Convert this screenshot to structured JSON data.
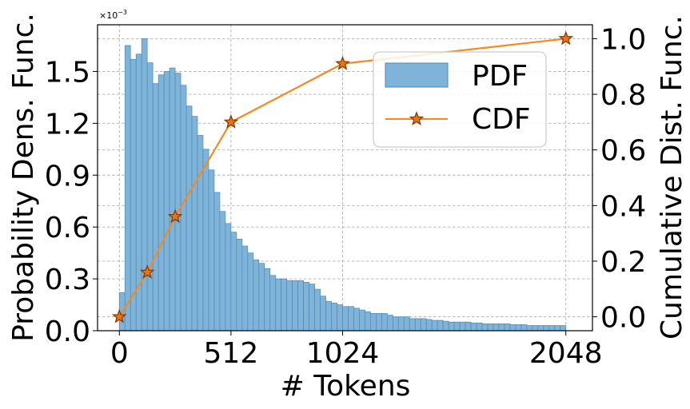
{
  "chart_data": {
    "type": "bar",
    "xlabel": "# Tokens",
    "ylabel_left": "Probability Dens. Func.",
    "ylabel_right": "Cumulative Dist. Func.",
    "left_axis_multiplier": "×10",
    "left_axis_multiplier_exp": "−3",
    "xlim": [
      -100,
      2170
    ],
    "ylim_left": [
      0,
      1.77
    ],
    "ylim_right": [
      -0.05,
      1.05
    ],
    "x_ticks": [
      0,
      512,
      1024,
      2048
    ],
    "x_tick_labels": [
      "0",
      "512",
      "1024",
      "2048"
    ],
    "y_left_ticks": [
      0,
      0.3,
      0.6,
      0.9,
      1.2,
      1.5
    ],
    "y_left_tick_labels": [
      "0.0",
      "0.3",
      "0.6",
      "0.9",
      "1.2",
      "1.5"
    ],
    "y_right_ticks": [
      0,
      0.2,
      0.4,
      0.6,
      0.8,
      1.0
    ],
    "y_right_tick_labels": [
      "0.0",
      "0.2",
      "0.4",
      "0.6",
      "0.8",
      "1.0"
    ],
    "grid": true,
    "legend_position": "upper-right",
    "series": [
      {
        "name": "PDF",
        "type": "histogram",
        "color": "#7fb3d8",
        "edge_color": "#4a8ab8",
        "bin_start": 0,
        "bin_width": 25.6,
        "values": [
          0.22,
          1.65,
          1.57,
          1.6,
          1.69,
          1.55,
          1.43,
          1.48,
          1.5,
          1.52,
          1.49,
          1.42,
          1.3,
          1.24,
          1.13,
          1.05,
          0.93,
          0.8,
          0.69,
          0.62,
          0.57,
          0.53,
          0.49,
          0.45,
          0.41,
          0.39,
          0.36,
          0.32,
          0.3,
          0.3,
          0.29,
          0.29,
          0.29,
          0.28,
          0.27,
          0.24,
          0.2,
          0.17,
          0.16,
          0.15,
          0.14,
          0.14,
          0.13,
          0.12,
          0.11,
          0.1,
          0.1,
          0.1,
          0.09,
          0.08,
          0.08,
          0.08,
          0.07,
          0.07,
          0.07,
          0.065,
          0.06,
          0.06,
          0.055,
          0.05,
          0.05,
          0.05,
          0.05,
          0.045,
          0.045,
          0.04,
          0.04,
          0.04,
          0.04,
          0.04,
          0.035,
          0.035,
          0.035,
          0.03,
          0.03,
          0.03,
          0.03,
          0.03,
          0.03,
          0.03
        ]
      },
      {
        "name": "CDF",
        "type": "line",
        "color": "#f58a1f",
        "marker": "star",
        "marker_face": "#e8760b",
        "marker_edge": "#8a3a00",
        "x": [
          0,
          128,
          256,
          512,
          1024,
          2048
        ],
        "y": [
          0.0,
          0.16,
          0.36,
          0.7,
          0.91,
          1.0
        ]
      }
    ]
  }
}
